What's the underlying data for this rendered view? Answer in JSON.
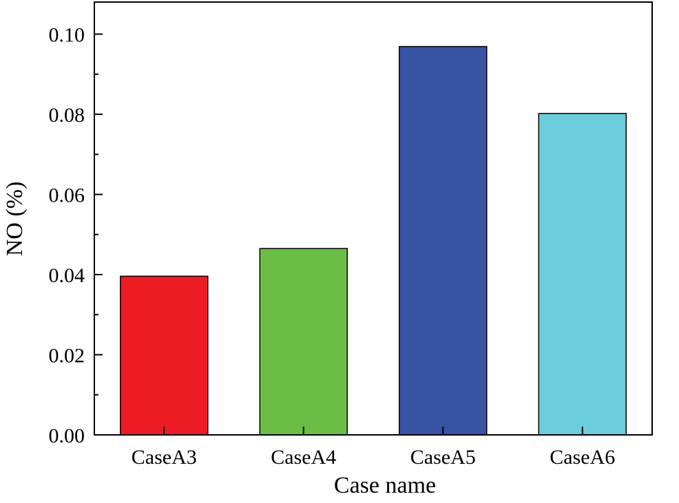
{
  "chart_data": {
    "type": "bar",
    "categories": [
      "CaseA3",
      "CaseA4",
      "CaseA5",
      "CaseA6"
    ],
    "values": [
      0.0396,
      0.0465,
      0.0969,
      0.0802
    ],
    "colors": [
      "#ed1c24",
      "#6abd45",
      "#3953a4",
      "#6ccddd"
    ],
    "xlabel": "Case name",
    "ylabel": "NO (%)",
    "ylim": [
      0,
      0.108
    ],
    "yticks": [
      {
        "value": 0.0,
        "label": "0.00"
      },
      {
        "value": 0.02,
        "label": "0.02"
      },
      {
        "value": 0.04,
        "label": "0.04"
      },
      {
        "value": 0.06,
        "label": "0.06"
      },
      {
        "value": 0.08,
        "label": "0.08"
      },
      {
        "value": 0.1,
        "label": "0.10"
      }
    ],
    "minor_yticks": [
      0.01,
      0.03,
      0.05,
      0.07,
      0.09
    ],
    "grid": false,
    "legend": "none"
  }
}
